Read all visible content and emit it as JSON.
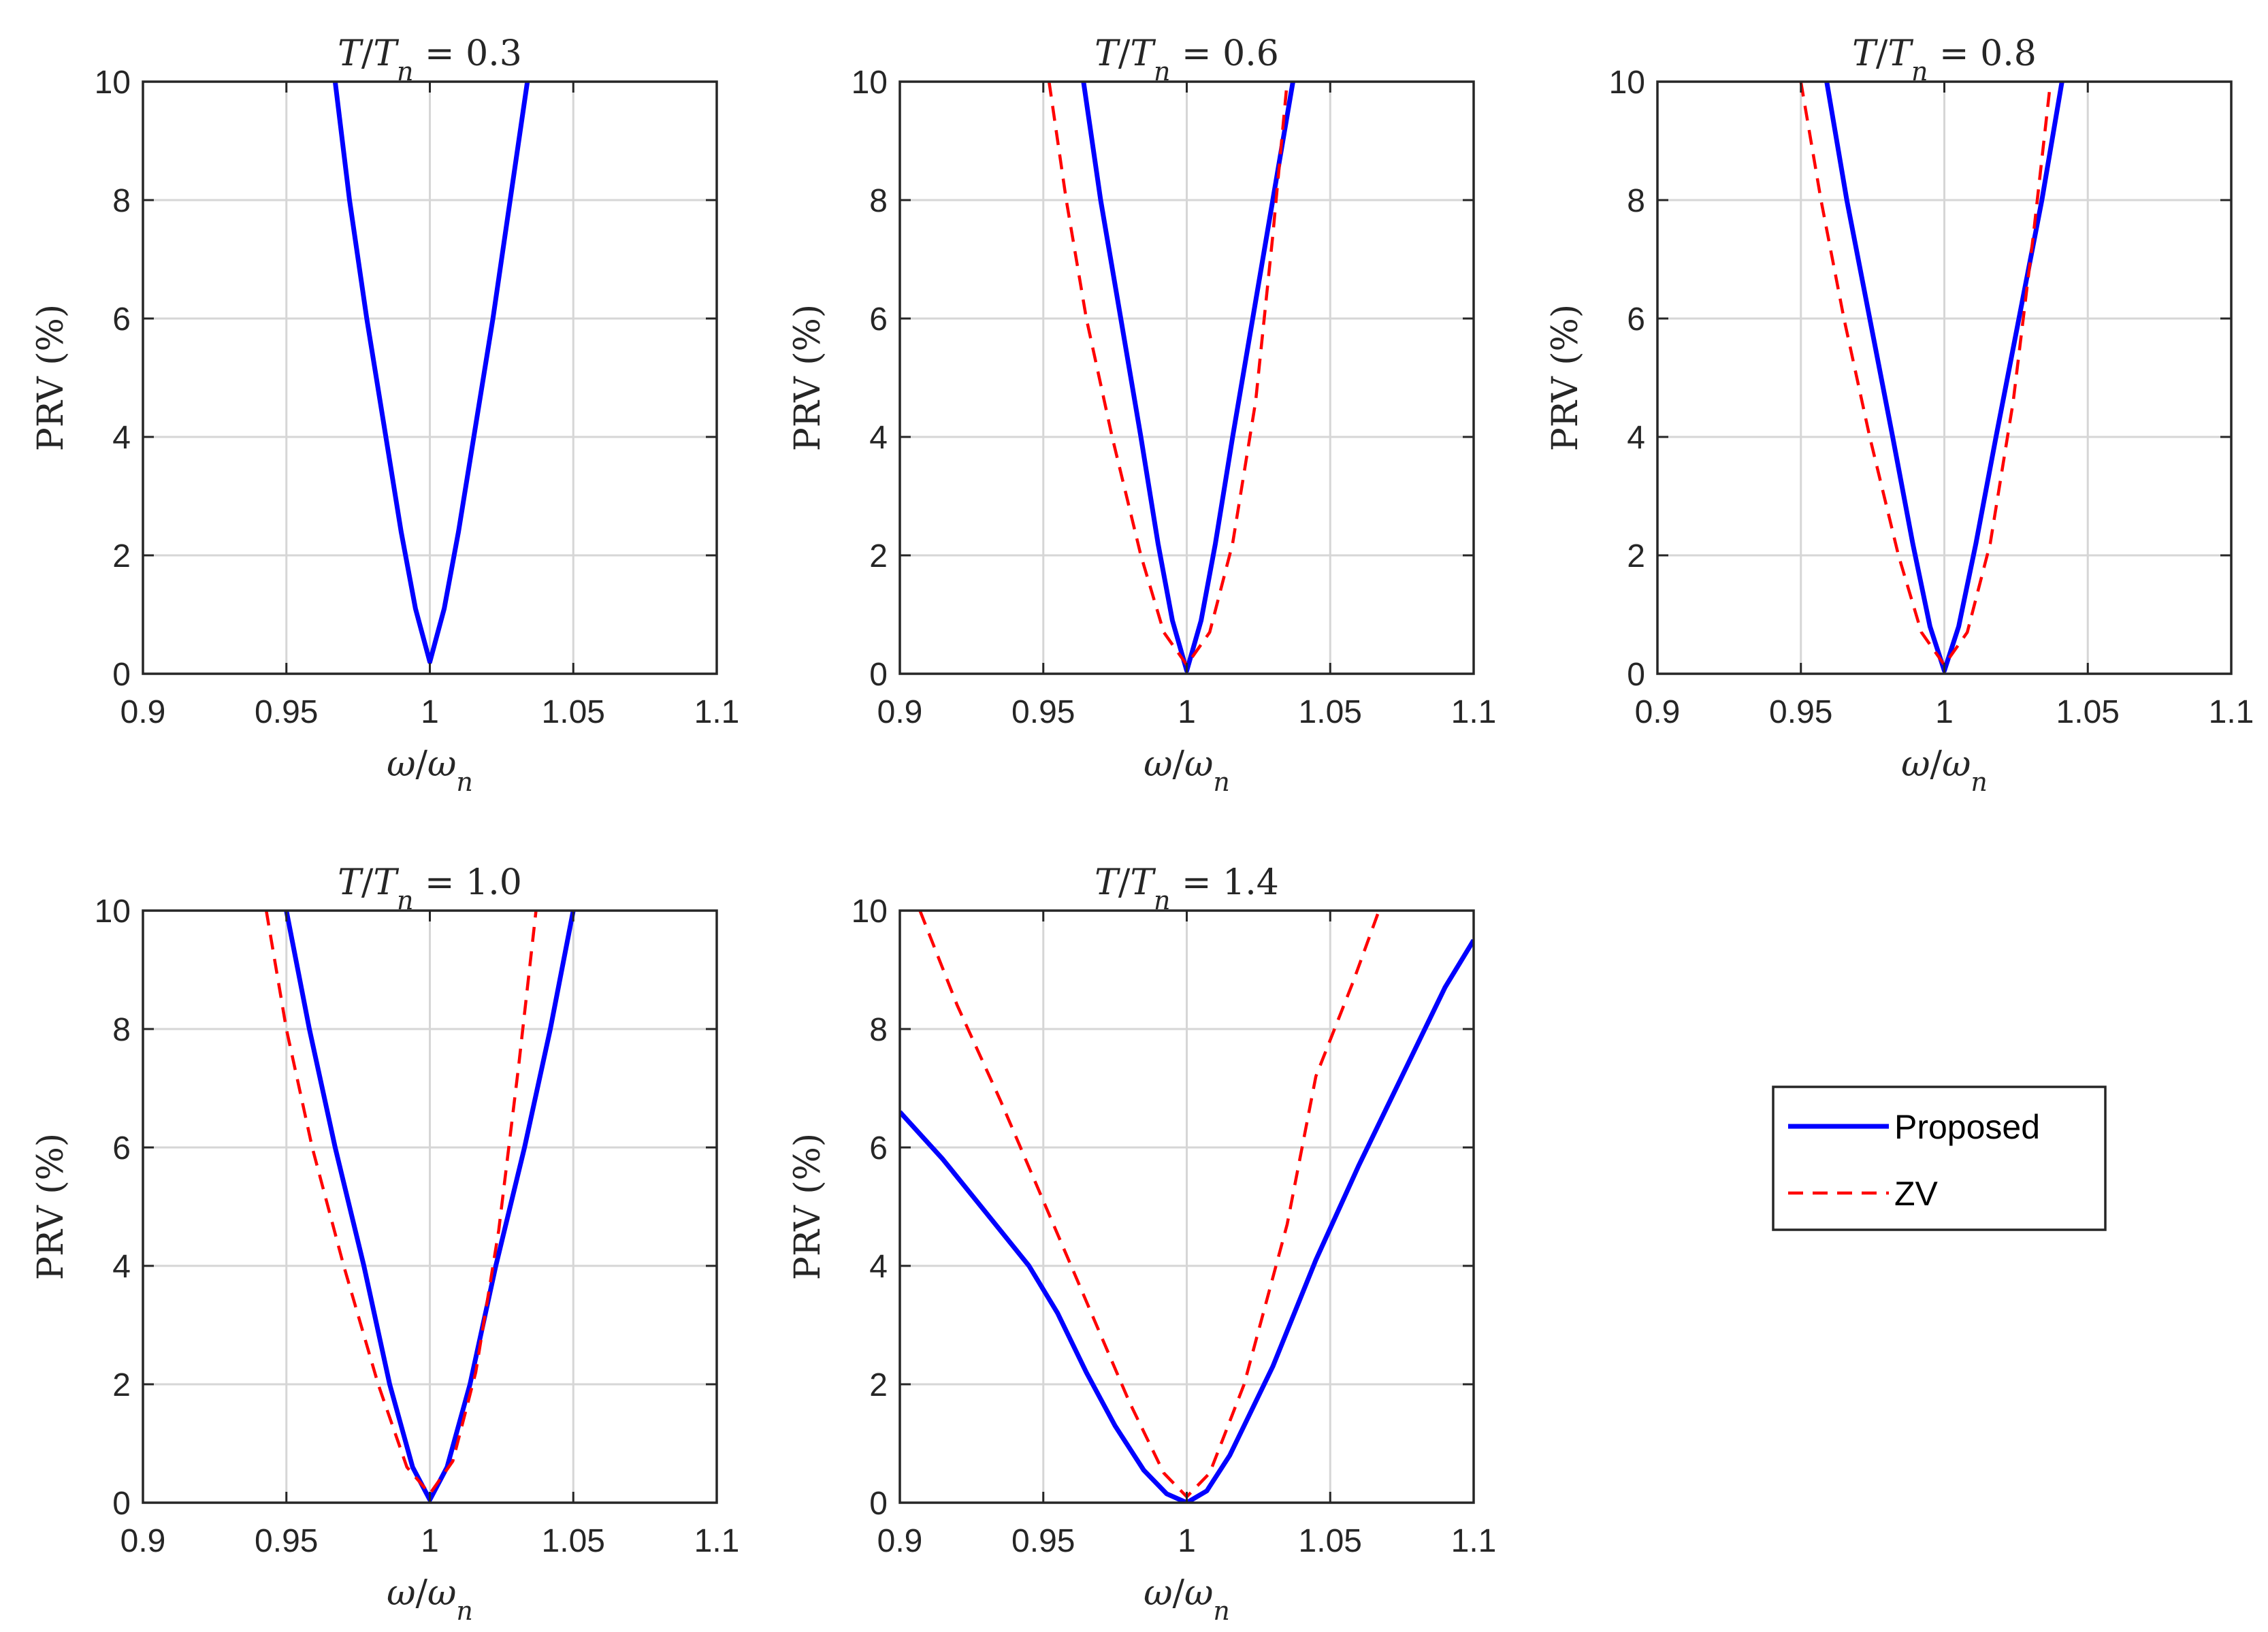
{
  "figure": {
    "colors": {
      "proposed": "#0000ff",
      "zv": "#ff0000",
      "grid": "#d6d6d6",
      "axes": "#262626"
    },
    "legend": {
      "placement": "right, bottom row",
      "entries": [
        "Proposed",
        "ZV"
      ]
    }
  },
  "chart_data": [
    {
      "type": "line",
      "title": "T/Tn = 0.3",
      "xlabel": "ω/ωn",
      "ylabel": "PRV (%)",
      "xlim": [
        0.9,
        1.1
      ],
      "ylim": [
        0,
        10
      ],
      "xticks": [
        "0.9",
        "0.95",
        "1",
        "1.05",
        "1.1"
      ],
      "yticks": [
        "0",
        "2",
        "4",
        "6",
        "8",
        "10"
      ],
      "grid": true,
      "series": [
        {
          "name": "Proposed",
          "style": "solid",
          "x": [
            0.967,
            0.972,
            0.978,
            0.984,
            0.99,
            0.995,
            1.0,
            1.005,
            1.01,
            1.016,
            1.022,
            1.028,
            1.034
          ],
          "y": [
            10,
            8.0,
            6.0,
            4.2,
            2.4,
            1.1,
            0.2,
            1.1,
            2.4,
            4.2,
            6.0,
            8.0,
            10
          ]
        }
      ]
    },
    {
      "type": "line",
      "title": "T/Tn = 0.6",
      "xlabel": "ω/ωn",
      "ylabel": "PRV (%)",
      "xlim": [
        0.9,
        1.1
      ],
      "ylim": [
        0,
        10
      ],
      "xticks": [
        "0.9",
        "0.95",
        "1",
        "1.05",
        "1.1"
      ],
      "yticks": [
        "0",
        "2",
        "4",
        "6",
        "8",
        "10"
      ],
      "grid": true,
      "series": [
        {
          "name": "Proposed",
          "style": "solid",
          "x": [
            0.964,
            0.97,
            0.977,
            0.984,
            0.99,
            0.995,
            1.0,
            1.005,
            1.01,
            1.016,
            1.023,
            1.03,
            1.037
          ],
          "y": [
            10,
            8.0,
            6.0,
            4.0,
            2.2,
            0.9,
            0.05,
            0.9,
            2.2,
            4.0,
            6.0,
            8.0,
            10
          ]
        },
        {
          "name": "ZV",
          "style": "dashed",
          "x": [
            0.952,
            0.958,
            0.965,
            0.974,
            0.984,
            0.992,
            1.0,
            1.008,
            1.016,
            1.024,
            1.03,
            1.035
          ],
          "y": [
            10,
            8.0,
            6.0,
            4.0,
            2.0,
            0.7,
            0.15,
            0.7,
            2.2,
            4.6,
            7.4,
            10
          ]
        }
      ]
    },
    {
      "type": "line",
      "title": "T/Tn = 0.8",
      "xlabel": "ω/ωn",
      "ylabel": "PRV (%)",
      "xlim": [
        0.9,
        1.1
      ],
      "ylim": [
        0,
        10
      ],
      "xticks": [
        "0.9",
        "0.95",
        "1",
        "1.05",
        "1.1"
      ],
      "yticks": [
        "0",
        "2",
        "4",
        "6",
        "8",
        "10"
      ],
      "grid": true,
      "series": [
        {
          "name": "Proposed",
          "style": "solid",
          "x": [
            0.959,
            0.966,
            0.974,
            0.982,
            0.989,
            0.995,
            1.0,
            1.005,
            1.011,
            1.018,
            1.026,
            1.034,
            1.041
          ],
          "y": [
            10,
            8.0,
            6.0,
            4.0,
            2.2,
            0.8,
            0.05,
            0.8,
            2.2,
            4.0,
            6.0,
            8.0,
            10
          ]
        },
        {
          "name": "ZV",
          "style": "dashed",
          "x": [
            0.95,
            0.957,
            0.965,
            0.974,
            0.984,
            0.992,
            1.0,
            1.008,
            1.016,
            1.024,
            1.031,
            1.037
          ],
          "y": [
            10,
            8.0,
            6.0,
            4.0,
            2.0,
            0.7,
            0.15,
            0.7,
            2.2,
            4.6,
            7.4,
            10
          ]
        }
      ]
    },
    {
      "type": "line",
      "title": "T/Tn = 1.0",
      "xlabel": "ω/ωn",
      "ylabel": "PRV (%)",
      "xlim": [
        0.9,
        1.1
      ],
      "ylim": [
        0,
        10
      ],
      "xticks": [
        "0.9",
        "0.95",
        "1",
        "1.05",
        "1.1"
      ],
      "yticks": [
        "0",
        "2",
        "4",
        "6",
        "8",
        "10"
      ],
      "grid": true,
      "series": [
        {
          "name": "Proposed",
          "style": "solid",
          "x": [
            0.95,
            0.958,
            0.967,
            0.977,
            0.986,
            0.994,
            1.0,
            1.006,
            1.014,
            1.023,
            1.033,
            1.042,
            1.05
          ],
          "y": [
            10,
            8.0,
            6.0,
            4.0,
            2.0,
            0.6,
            0.05,
            0.6,
            2.0,
            4.0,
            6.0,
            8.0,
            10
          ]
        },
        {
          "name": "ZV",
          "style": "dashed",
          "x": [
            0.943,
            0.95,
            0.959,
            0.97,
            0.982,
            0.992,
            1.0,
            1.008,
            1.016,
            1.024,
            1.031,
            1.037
          ],
          "y": [
            10,
            8.0,
            6.0,
            4.0,
            2.0,
            0.6,
            0.15,
            0.7,
            2.2,
            4.6,
            7.4,
            10
          ]
        }
      ]
    },
    {
      "type": "line",
      "title": "T/Tn = 1.4",
      "xlabel": "ω/ωn",
      "ylabel": "PRV (%)",
      "xlim": [
        0.9,
        1.1
      ],
      "ylim": [
        0,
        10
      ],
      "xticks": [
        "0.9",
        "0.95",
        "1",
        "1.05",
        "1.1"
      ],
      "yticks": [
        "0",
        "2",
        "4",
        "6",
        "8",
        "10"
      ],
      "grid": true,
      "series": [
        {
          "name": "Proposed",
          "style": "solid",
          "x": [
            0.9,
            0.915,
            0.93,
            0.945,
            0.955,
            0.965,
            0.975,
            0.985,
            0.993,
            1.0,
            1.007,
            1.015,
            1.03,
            1.045,
            1.06,
            1.075,
            1.09,
            1.1
          ],
          "y": [
            6.6,
            5.8,
            4.9,
            4.0,
            3.2,
            2.2,
            1.3,
            0.55,
            0.15,
            0.0,
            0.2,
            0.8,
            2.3,
            4.1,
            5.7,
            7.2,
            8.7,
            9.5
          ]
        },
        {
          "name": "ZV",
          "style": "dashed",
          "x": [
            0.907,
            0.92,
            0.935,
            0.95,
            0.965,
            0.98,
            0.992,
            1.0,
            1.008,
            1.02,
            1.035,
            1.045,
            1.058,
            1.067
          ],
          "y": [
            10,
            8.4,
            6.8,
            5.1,
            3.4,
            1.7,
            0.5,
            0.1,
            0.5,
            2.0,
            4.7,
            7.2,
            8.8,
            10
          ]
        }
      ]
    }
  ]
}
